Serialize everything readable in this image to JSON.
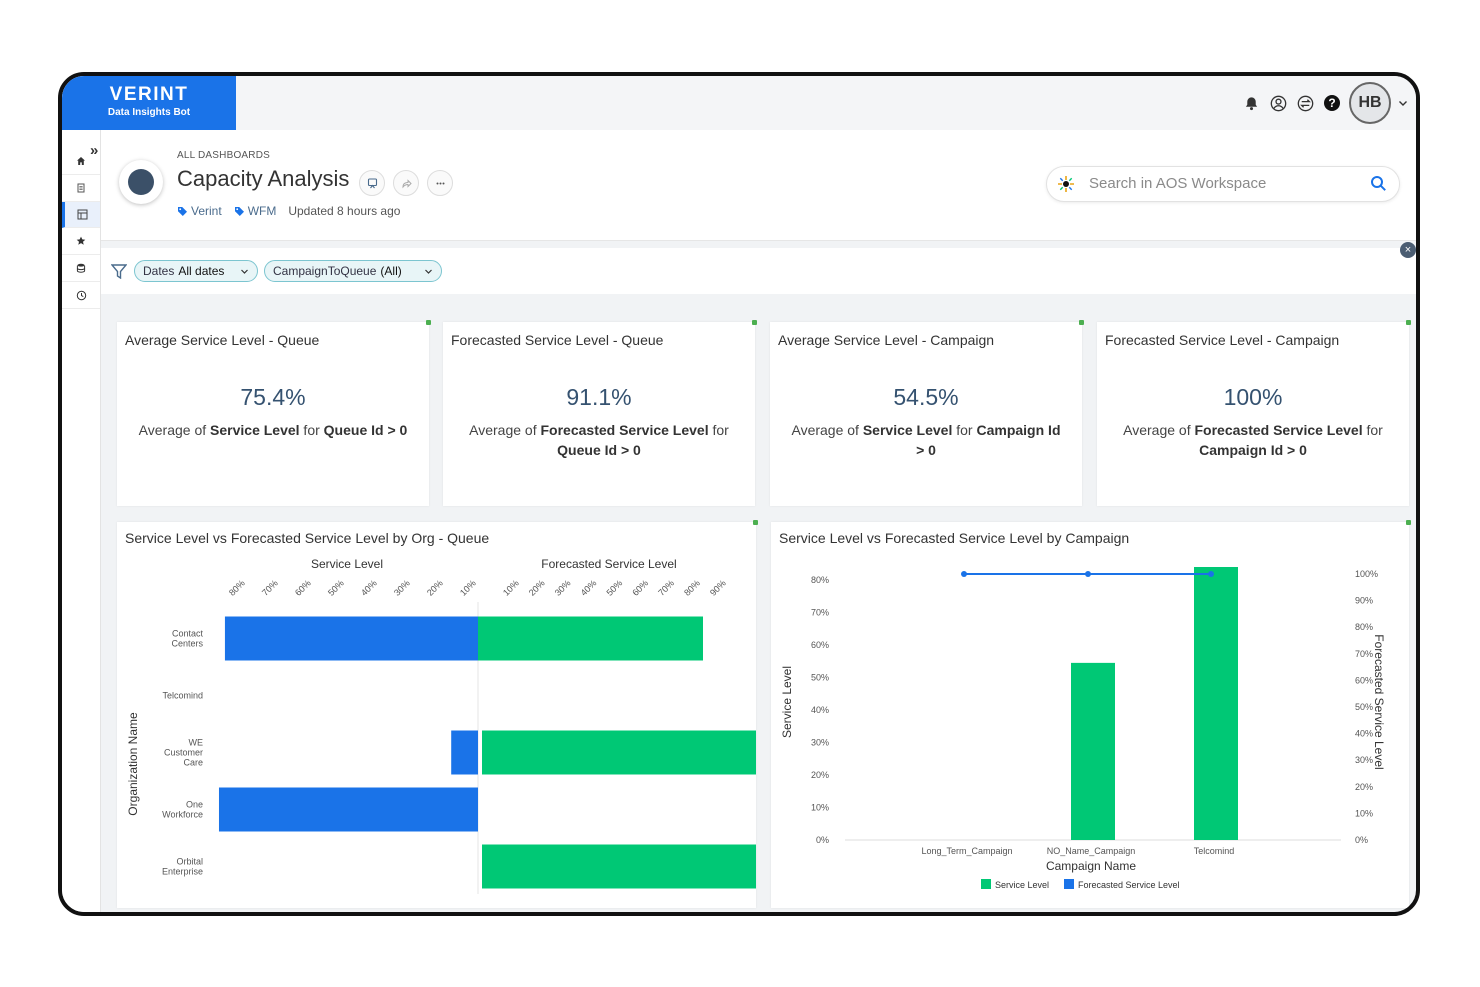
{
  "app": {
    "brand": "VERINT",
    "subtitle": "Data Insights Bot"
  },
  "topbar": {
    "icons": [
      "bell-icon",
      "user-circle-icon",
      "switch-icon",
      "help-icon"
    ],
    "avatar": "HB"
  },
  "sidebar": {
    "items": [
      "home-icon",
      "document-icon",
      "dashboard-icon",
      "star-icon",
      "database-icon",
      "history-icon"
    ],
    "active_index": 2
  },
  "header": {
    "breadcrumb": "ALL DASHBOARDS",
    "title": "Capacity Analysis",
    "tags": [
      "Verint",
      "WFM"
    ],
    "updated": "Updated 8 hours ago"
  },
  "search": {
    "placeholder": "Search in AOS Workspace"
  },
  "filters": [
    {
      "label": "Dates",
      "value": "All dates"
    },
    {
      "label": "CampaignToQueue",
      "value": "(All)"
    }
  ],
  "colors": {
    "blue": "#1a73e8",
    "green": "#00c875",
    "accent_border": "#7cc5d0"
  },
  "kpis": [
    {
      "title": "Average Service Level - Queue",
      "value": "75.4%",
      "desc": [
        [
          "Average of ",
          false
        ],
        [
          "Service Level",
          true
        ],
        [
          " for ",
          false
        ],
        [
          "Queue Id > 0",
          true
        ]
      ]
    },
    {
      "title": "Forecasted Service Level - Queue",
      "value": "91.1%",
      "desc": [
        [
          "Average of ",
          false
        ],
        [
          "Forecasted Service Level",
          true
        ],
        [
          " for ",
          false
        ],
        [
          "Queue Id > 0",
          true
        ]
      ]
    },
    {
      "title": "Average Service Level - Campaign",
      "value": "54.5%",
      "desc": [
        [
          "Average of ",
          false
        ],
        [
          "Service Level",
          true
        ],
        [
          " for ",
          false
        ],
        [
          "Campaign Id > 0",
          true
        ]
      ]
    },
    {
      "title": "Forecasted Service Level - Campaign",
      "value": "100%",
      "desc": [
        [
          "Average of ",
          false
        ],
        [
          "Forecasted Service Level",
          true
        ],
        [
          " for ",
          false
        ],
        [
          "Campaign Id > 0",
          true
        ]
      ]
    }
  ],
  "chart_data": [
    {
      "type": "bar",
      "title": "Service Level vs Forecasted Service Level by Org - Queue",
      "ylabel": "Organization Name",
      "categories": [
        "Contact Centers",
        "Telcomind",
        "WE Customer Care",
        "One Workforce",
        "Orbital Enterprise"
      ],
      "left_panel": {
        "name": "Service Level",
        "ticks": [
          "80%",
          "70%",
          "60%",
          "50%",
          "40%",
          "30%",
          "20%",
          "10%"
        ],
        "values": [
          85,
          0,
          9,
          87,
          0
        ],
        "max": 88
      },
      "right_panel": {
        "name": "Forecasted Service Level",
        "ticks": [
          "10%",
          "20%",
          "30%",
          "40%",
          "50%",
          "60%",
          "70%",
          "80%",
          "90%"
        ],
        "values": [
          85,
          0,
          100,
          0,
          100
        ],
        "max": 100
      }
    },
    {
      "type": "bar",
      "title": "Service Level vs Forecasted Service Level by Campaign",
      "xlabel": "Campaign Name",
      "ylabel": "Service Level",
      "y2label": "Forecasted Service Level",
      "categories": [
        "Long_Term_Campaign",
        "NO_Name_Campaign",
        "Telcomind"
      ],
      "ylim": [
        0,
        80
      ],
      "y2lim": [
        0,
        100
      ],
      "yticks": [
        "80%",
        "70%",
        "60%",
        "50%",
        "40%",
        "30%",
        "20%",
        "10%",
        "0%"
      ],
      "y2ticks": [
        "100%",
        "90%",
        "80%",
        "70%",
        "60%",
        "50%",
        "40%",
        "30%",
        "20%",
        "10%",
        "0%"
      ],
      "series": [
        {
          "name": "Service Level",
          "values": [
            0,
            54.5,
            84
          ]
        },
        {
          "name": "Forecasted Service Level",
          "values": [
            100,
            100,
            100
          ]
        }
      ],
      "legend": "bottom"
    }
  ]
}
